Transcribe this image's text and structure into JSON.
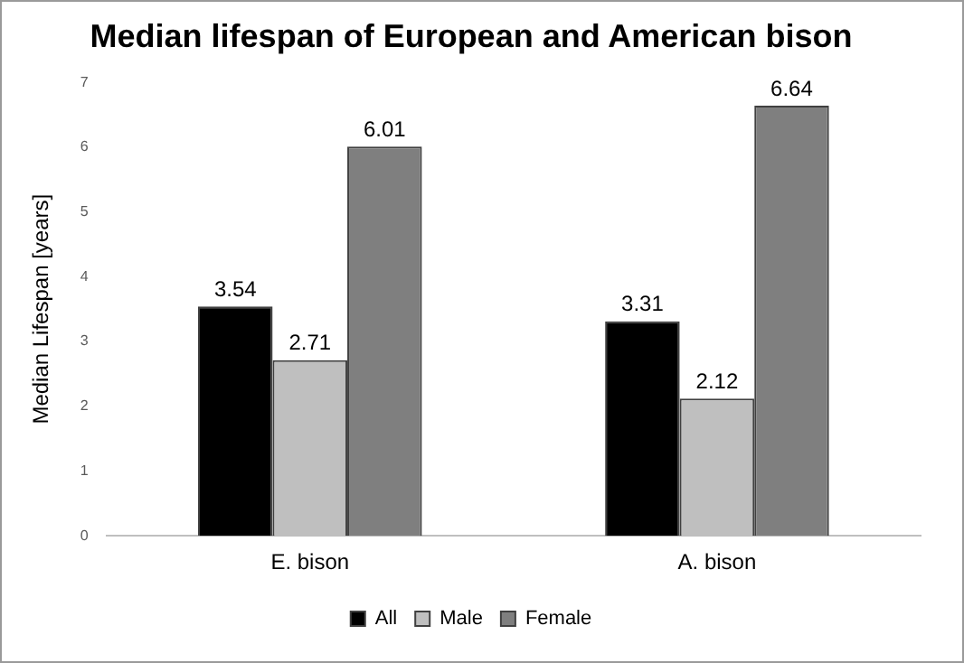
{
  "chart_data": {
    "type": "bar",
    "title": "Median lifespan of European and American bison",
    "ylabel": "Median Lifespan [years]",
    "categories": [
      "E. bison",
      "A. bison"
    ],
    "series": [
      {
        "name": "All",
        "color": "#000000",
        "values": [
          3.54,
          3.31
        ]
      },
      {
        "name": "Male",
        "color": "#bfbfbf",
        "values": [
          2.71,
          2.12
        ]
      },
      {
        "name": "Female",
        "color": "#7f7f7f",
        "values": [
          6.01,
          6.64
        ]
      }
    ],
    "ylim": [
      0,
      7
    ],
    "yticks": [
      0,
      1,
      2,
      3,
      4,
      5,
      6,
      7
    ],
    "grid": false,
    "legend": "bottom",
    "data_labels": true
  }
}
